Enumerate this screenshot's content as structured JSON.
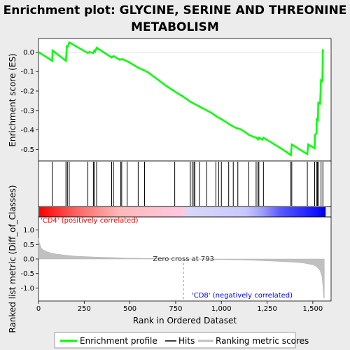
{
  "chart_data": {
    "type": "line",
    "title_line1": "Enrichment plot: GLYCINE, SERINE AND THREONINE",
    "title_line2": "METABOLISM",
    "top_panel": {
      "ylabel": "Enrichment score (ES)",
      "ylim": [
        -0.56,
        0.07
      ],
      "yticks": [
        0.0,
        -0.1,
        -0.2,
        -0.3,
        -0.4,
        -0.5
      ],
      "ytick_labels": [
        "0.0",
        "-0.1",
        "-0.2",
        "-0.3",
        "-0.4",
        "-0.5"
      ],
      "es_color": "#00ff00",
      "es_points": [
        [
          0,
          0.0
        ],
        [
          75,
          -0.045
        ],
        [
          77,
          0.008
        ],
        [
          150,
          -0.045
        ],
        [
          155,
          0.03
        ],
        [
          160,
          0.028
        ],
        [
          168,
          0.05
        ],
        [
          270,
          -0.005
        ],
        [
          278,
          0.0
        ],
        [
          300,
          -0.005
        ],
        [
          305,
          0.008
        ],
        [
          310,
          0.003
        ],
        [
          318,
          0.022
        ],
        [
          400,
          -0.028
        ],
        [
          410,
          -0.02
        ],
        [
          420,
          -0.025
        ],
        [
          445,
          -0.04
        ],
        [
          455,
          -0.035
        ],
        [
          480,
          -0.045
        ],
        [
          500,
          -0.055
        ],
        [
          545,
          -0.08
        ],
        [
          580,
          -0.095
        ],
        [
          600,
          -0.105
        ],
        [
          650,
          -0.14
        ],
        [
          700,
          -0.175
        ],
        [
          750,
          -0.205
        ],
        [
          800,
          -0.235
        ],
        [
          830,
          -0.255
        ],
        [
          850,
          -0.265
        ],
        [
          900,
          -0.29
        ],
        [
          950,
          -0.315
        ],
        [
          980,
          -0.335
        ],
        [
          1000,
          -0.345
        ],
        [
          1050,
          -0.375
        ],
        [
          1080,
          -0.39
        ],
        [
          1100,
          -0.395
        ],
        [
          1120,
          -0.405
        ],
        [
          1150,
          -0.425
        ],
        [
          1160,
          -0.43
        ],
        [
          1190,
          -0.44
        ],
        [
          1200,
          -0.45
        ],
        [
          1205,
          -0.44
        ],
        [
          1225,
          -0.45
        ],
        [
          1230,
          -0.44
        ],
        [
          1300,
          -0.48
        ],
        [
          1350,
          -0.51
        ],
        [
          1380,
          -0.53
        ],
        [
          1385,
          -0.475
        ],
        [
          1470,
          -0.525
        ],
        [
          1475,
          -0.475
        ],
        [
          1510,
          -0.495
        ],
        [
          1512,
          -0.425
        ],
        [
          1520,
          -0.42
        ],
        [
          1522,
          -0.345
        ],
        [
          1528,
          -0.35
        ],
        [
          1530,
          -0.26
        ],
        [
          1540,
          -0.265
        ],
        [
          1545,
          -0.145
        ],
        [
          1552,
          -0.15
        ],
        [
          1555,
          0.008
        ],
        [
          1560,
          0.005
        ]
      ]
    },
    "hits_panel": {
      "hit_positions": [
        75,
        150,
        158,
        168,
        270,
        300,
        305,
        318,
        400,
        410,
        450,
        455,
        485,
        545,
        580,
        745,
        830,
        840,
        850,
        855,
        880,
        920,
        970,
        985,
        1000,
        1040,
        1065,
        1090,
        1150,
        1190,
        1200,
        1205,
        1230,
        1380,
        1385,
        1470,
        1510,
        1520,
        1525,
        1530,
        1545,
        1555
      ]
    },
    "rank_bar": {
      "max_rank": 1570,
      "gradient_stops": [
        [
          0.0,
          "#ff0000"
        ],
        [
          0.14,
          "#ff6a6a"
        ],
        [
          0.28,
          "#ffb8b8"
        ],
        [
          0.5,
          "#ffc8e0"
        ],
        [
          0.52,
          "#d8d8f8"
        ],
        [
          0.72,
          "#c8c8ff"
        ],
        [
          0.78,
          "#9e9ef8"
        ],
        [
          0.84,
          "#5a5aff"
        ],
        [
          0.97,
          "#1010ff"
        ],
        [
          1.0,
          "#0000cc"
        ]
      ]
    },
    "bottom_panel": {
      "ylabel": "Ranked list metric (Diff_of_Classes)",
      "xlabel": "Rank in Ordered Dataset",
      "ylim": [
        -1.45,
        1.45
      ],
      "yticks": [
        1.0,
        0.5,
        0.0,
        -0.5,
        -1.0
      ],
      "ytick_labels": [
        "1.0",
        "0.5",
        "0.0",
        "-0.5",
        "-1.0"
      ],
      "xlim": [
        0,
        1600
      ],
      "xticks": [
        0,
        250,
        500,
        750,
        1000,
        1250,
        1500
      ],
      "xtick_labels": [
        "0",
        "250",
        "500",
        "750",
        "1,000",
        "1,250",
        "1,500"
      ],
      "metric_points": [
        [
          0,
          0.72
        ],
        [
          5,
          0.55
        ],
        [
          15,
          0.38
        ],
        [
          30,
          0.3
        ],
        [
          60,
          0.22
        ],
        [
          100,
          0.17
        ],
        [
          150,
          0.13
        ],
        [
          200,
          0.1
        ],
        [
          300,
          0.07
        ],
        [
          400,
          0.05
        ],
        [
          500,
          0.03
        ],
        [
          600,
          0.02
        ],
        [
          700,
          0.01
        ],
        [
          793,
          0.0
        ],
        [
          900,
          -0.01
        ],
        [
          1000,
          -0.02
        ],
        [
          1100,
          -0.03
        ],
        [
          1200,
          -0.05
        ],
        [
          1300,
          -0.08
        ],
        [
          1400,
          -0.11
        ],
        [
          1450,
          -0.14
        ],
        [
          1500,
          -0.2
        ],
        [
          1520,
          -0.26
        ],
        [
          1540,
          -0.4
        ],
        [
          1550,
          -0.6
        ],
        [
          1555,
          -0.9
        ],
        [
          1560,
          -1.35
        ],
        [
          1563,
          -1.35
        ]
      ],
      "zero_cross_rank": 793,
      "zero_cross_label": "Zero cross at 793",
      "pos_label": "'CD4' (positively correlated)",
      "neg_label": "'CD8' (negatively correlated)",
      "pos_color": "#ff0000",
      "neg_color": "#0000ff"
    },
    "legend": [
      {
        "label": "Enrichment profile",
        "color": "#00ff00"
      },
      {
        "label": "Hits",
        "color": "#000000"
      },
      {
        "label": "Ranking metric scores",
        "color": "#c0c0c0"
      }
    ]
  }
}
